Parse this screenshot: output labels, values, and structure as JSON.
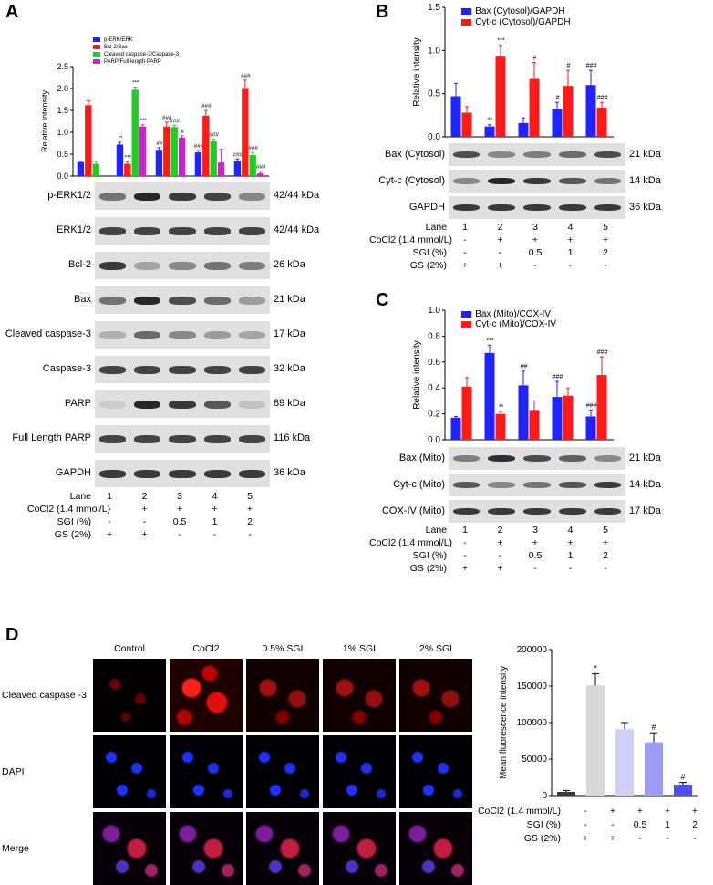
{
  "panels": {
    "A": "A",
    "B": "B",
    "C": "C",
    "D": "D"
  },
  "colors": {
    "blue": "#1f24ff",
    "red": "#ff1a1a",
    "green": "#22cc22",
    "magenta": "#cc22cc"
  },
  "chart_data": [
    {
      "id": "A",
      "type": "bar",
      "ylabel": "Relative intensity",
      "ylim": [
        0,
        2.5
      ],
      "yticks": [
        "0.0",
        "0.5",
        "1.0",
        "1.5",
        "2.0",
        "2.5"
      ],
      "series": [
        {
          "name": "p-ERK/ERK",
          "values": [
            0.32,
            0.72,
            0.6,
            0.54,
            0.35
          ],
          "errors": [
            0.02,
            0.05,
            0.05,
            0.04,
            0.04
          ],
          "marks": [
            "",
            "**",
            "##",
            "###",
            "###"
          ]
        },
        {
          "name": "Bcl-2/Bax",
          "values": [
            1.62,
            0.28,
            1.13,
            1.38,
            2.01
          ],
          "errors": [
            0.1,
            0.04,
            0.1,
            0.12,
            0.18
          ],
          "marks": [
            "",
            "***",
            "###",
            "###",
            "###"
          ]
        },
        {
          "name": "Cleaved caspase-3/Caspase-3",
          "values": [
            0.28,
            1.97,
            1.12,
            0.8,
            0.48
          ],
          "errors": [
            0.05,
            0.06,
            0.04,
            0.04,
            0.06
          ],
          "marks": [
            "",
            "***",
            "###",
            "###",
            "###"
          ]
        },
        {
          "name": "PARP/Full length PARP",
          "values": [
            0.0,
            1.13,
            0.88,
            0.31,
            0.06
          ],
          "errors": [
            0.0,
            0.04,
            0.04,
            0.3,
            0.04
          ],
          "marks": [
            "",
            "***",
            "#",
            "",
            "###"
          ]
        }
      ]
    },
    {
      "id": "B",
      "type": "bar",
      "ylabel": "Relative intensity",
      "ylim": [
        0,
        1.5
      ],
      "yticks": [
        "0.0",
        "0.5",
        "1.0",
        "1.5"
      ],
      "series": [
        {
          "name": "Bax (Cytosol)/GAPDH",
          "values": [
            0.47,
            0.12,
            0.16,
            0.32,
            0.6
          ],
          "errors": [
            0.15,
            0.02,
            0.06,
            0.08,
            0.17
          ],
          "marks": [
            "",
            "**",
            "",
            "#",
            "###"
          ]
        },
        {
          "name": "Cyt-c (Cytosol)/GAPDH",
          "values": [
            0.28,
            0.94,
            0.67,
            0.59,
            0.34
          ],
          "errors": [
            0.07,
            0.12,
            0.19,
            0.18,
            0.06
          ],
          "marks": [
            "",
            "***",
            "#",
            "#",
            "###"
          ]
        }
      ]
    },
    {
      "id": "C",
      "type": "bar",
      "ylabel": "Relative intensity",
      "ylim": [
        0,
        1.0
      ],
      "yticks": [
        "0.0",
        "0.2",
        "0.4",
        "0.6",
        "0.8",
        "1.0"
      ],
      "series": [
        {
          "name": "Bax (Mito)/COX-IV",
          "values": [
            0.17,
            0.67,
            0.42,
            0.33,
            0.18
          ],
          "errors": [
            0.01,
            0.06,
            0.11,
            0.12,
            0.05
          ],
          "marks": [
            "",
            "***",
            "##",
            "###",
            "###"
          ]
        },
        {
          "name": "Cyt-c (Mito)/COX-IV",
          "values": [
            0.41,
            0.2,
            0.23,
            0.34,
            0.5
          ],
          "errors": [
            0.07,
            0.02,
            0.07,
            0.06,
            0.14
          ],
          "marks": [
            "",
            "**",
            "",
            "",
            "###"
          ]
        }
      ]
    },
    {
      "id": "D",
      "type": "bar",
      "ylabel": "Mean fluorescence intensity",
      "ylim": [
        0,
        200000
      ],
      "yticks": [
        "0",
        "50000",
        "100000",
        "150000",
        "200000"
      ],
      "values": [
        5000,
        151000,
        91000,
        73000,
        15000
      ],
      "errors": [
        2000,
        16000,
        9000,
        13000,
        3000
      ],
      "bar_colors": [
        "#3a3a3a",
        "#d8d8d8",
        "#cfcff8",
        "#9c9cf6",
        "#4f4ff0"
      ],
      "marks": [
        "",
        "*",
        "",
        "#",
        "#"
      ]
    }
  ],
  "blotsA": [
    {
      "label": "p-ERK1/2",
      "kda": "42/44 kDa",
      "bands": [
        0.55,
        0.95,
        0.85,
        0.8,
        0.45
      ]
    },
    {
      "label": "ERK1/2",
      "kda": "42/44 kDa",
      "bands": [
        0.8,
        0.8,
        0.8,
        0.8,
        0.8
      ]
    },
    {
      "label": "Bcl-2",
      "kda": "26 kDa",
      "bands": [
        0.85,
        0.3,
        0.45,
        0.55,
        0.5
      ]
    },
    {
      "label": "Bax",
      "kda": "21 kDa",
      "bands": [
        0.55,
        0.95,
        0.75,
        0.6,
        0.35
      ]
    },
    {
      "label": "Cleaved caspase-3",
      "kda": "17 kDa",
      "bands": [
        0.25,
        0.6,
        0.45,
        0.35,
        0.3
      ]
    },
    {
      "label": "Caspase-3",
      "kda": "32 kDa",
      "bands": [
        0.8,
        0.8,
        0.8,
        0.8,
        0.8
      ]
    },
    {
      "label": "PARP",
      "kda": "89 kDa",
      "bands": [
        0.1,
        0.95,
        0.85,
        0.7,
        0.15
      ]
    },
    {
      "label": "Full Length PARP",
      "kda": "116 kDa",
      "bands": [
        0.8,
        0.8,
        0.8,
        0.8,
        0.8
      ]
    },
    {
      "label": "GAPDH",
      "kda": "36 kDa",
      "bands": [
        0.85,
        0.85,
        0.85,
        0.85,
        0.85
      ]
    }
  ],
  "blotsB": [
    {
      "label": "Bax (Cytosol)",
      "kda": "21 kDa",
      "bands": [
        0.75,
        0.45,
        0.5,
        0.6,
        0.75
      ]
    },
    {
      "label": "Cyt-c (Cytosol)",
      "kda": "14 kDa",
      "bands": [
        0.45,
        0.95,
        0.85,
        0.7,
        0.55
      ]
    },
    {
      "label": "GAPDH",
      "kda": "36 kDa",
      "bands": [
        0.85,
        0.85,
        0.85,
        0.85,
        0.85
      ]
    }
  ],
  "blotsC": [
    {
      "label": "Bax (Mito)",
      "kda": "21 kDa",
      "bands": [
        0.5,
        0.9,
        0.75,
        0.65,
        0.45
      ]
    },
    {
      "label": "Cyt-c (Mito)",
      "kda": "14 kDa",
      "bands": [
        0.7,
        0.45,
        0.55,
        0.7,
        0.85
      ]
    },
    {
      "label": "COX-IV (Mito)",
      "kda": "17 kDa",
      "bands": [
        0.85,
        0.85,
        0.85,
        0.85,
        0.85
      ]
    }
  ],
  "table": {
    "lane_label": "Lane",
    "lanes": [
      "1",
      "2",
      "3",
      "4",
      "5"
    ],
    "cocl2_label": "CoCl2 (1.4 mmol/L)",
    "cocl2_values": [
      "-",
      "+",
      "+",
      "+",
      "+"
    ],
    "sgi_label": "SGI (%)",
    "sgi_values": [
      "-",
      "-",
      "0.5",
      "1",
      "2"
    ],
    "gs_label": "GS (2%)",
    "gs_values": [
      "+",
      "+",
      "-",
      "-",
      "-"
    ]
  },
  "tableD": {
    "cocl2_label": "CoCl2 (1.4  mmol/L)",
    "cocl2_values": [
      "-",
      "+",
      "+",
      "+",
      "+"
    ],
    "sgi_label": "SGI (%)",
    "sgi_values": [
      "-",
      "-",
      "0.5",
      "1",
      "2"
    ],
    "gs_label": "GS (2%)",
    "gs_values": [
      "+",
      "+",
      "-",
      "-",
      "-"
    ]
  },
  "microscopy": {
    "columns": [
      "Control",
      "CoCl2",
      "0.5% SGI",
      "1% SGI",
      "2% SGI"
    ],
    "rows": [
      "Cleaved caspase -3",
      "DAPI",
      "Merge"
    ]
  }
}
